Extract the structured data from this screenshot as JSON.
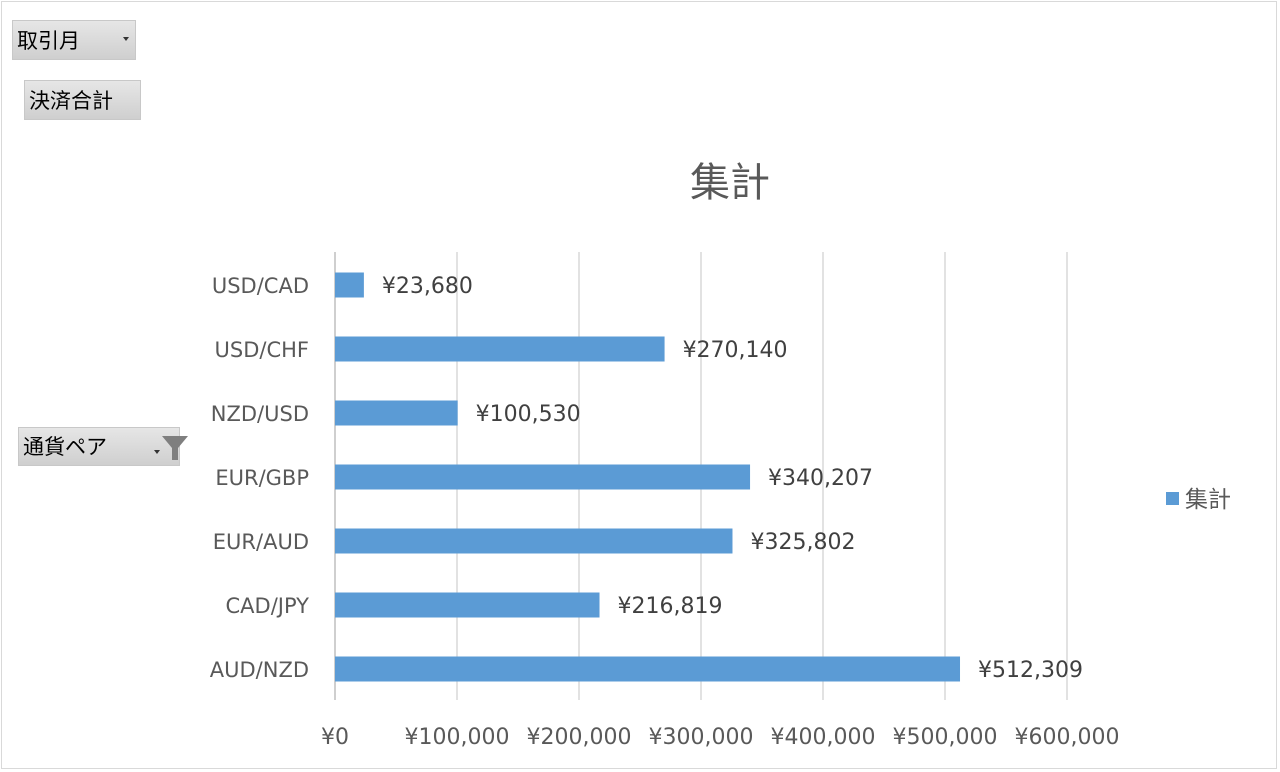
{
  "filters": {
    "month_button": "取引月",
    "values_button": "決済合計",
    "pair_button": "通貨ペア"
  },
  "icons": {
    "month_dropdown": "chevron-down-icon",
    "pair_dropdown": "chevron-down-icon",
    "pair_filter": "filter-icon"
  },
  "chart_data": {
    "type": "bar",
    "orientation": "horizontal",
    "title": "集計",
    "categories": [
      "USD/CAD",
      "USD/CHF",
      "NZD/USD",
      "EUR/GBP",
      "EUR/AUD",
      "CAD/JPY",
      "AUD/NZD"
    ],
    "series": [
      {
        "name": "集計",
        "values": [
          23680,
          270140,
          100530,
          340207,
          325802,
          216819,
          512309
        ],
        "labels": [
          "¥23,680",
          "¥270,140",
          "¥100,530",
          "¥340,207",
          "¥325,802",
          "¥216,819",
          "¥512,309"
        ],
        "color": "#5b9bd5"
      }
    ],
    "xlim": [
      0,
      600000
    ],
    "x_ticks": [
      0,
      100000,
      200000,
      300000,
      400000,
      500000,
      600000
    ],
    "x_tick_labels": [
      "¥0",
      "¥100,000",
      "¥200,000",
      "¥300,000",
      "¥400,000",
      "¥500,000",
      "¥600,000"
    ],
    "grid": true,
    "legend": "right"
  }
}
